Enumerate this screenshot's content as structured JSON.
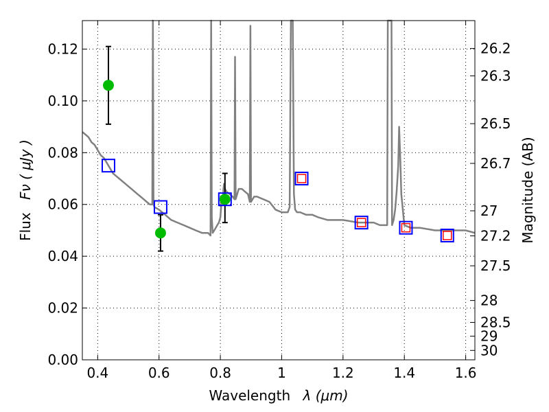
{
  "chart_data": {
    "type": "scatter",
    "xlabel_text": "Wavelength",
    "xlabel_math": "λ (μm)",
    "ylabel_text": "Flux",
    "ylabel_math": "Fν ( μJy )",
    "ylabel_right": "Magnitude (AB)",
    "xlim": [
      0.35,
      1.63
    ],
    "ylim": [
      0.0,
      0.131
    ],
    "grid": true,
    "x_ticks": [
      0.4,
      0.6,
      0.8,
      1.0,
      1.2,
      1.4,
      1.6
    ],
    "x_tick_labels": [
      "0.4",
      "0.6",
      "0.8",
      "1",
      "1.2",
      "1.4",
      "1.6"
    ],
    "y_ticks": [
      0.0,
      0.02,
      0.04,
      0.06,
      0.08,
      0.1,
      0.12
    ],
    "y_tick_labels": [
      "0.00",
      "0.02",
      "0.04",
      "0.06",
      "0.08",
      "0.10",
      "0.12"
    ],
    "mag_ticks": [
      26.2,
      26.3,
      26.5,
      26.7,
      27,
      27.2,
      27.5,
      28,
      28.5,
      29,
      30
    ],
    "mag_tick_labels": [
      "26.2",
      "26.3",
      "26.5",
      "26.7",
      "27",
      "27.2",
      "27.5",
      "28",
      "28.5",
      "29",
      "30"
    ],
    "colors": {
      "model": "#808080",
      "observed": "#00bb00",
      "errorbar": "#000000",
      "model_photometry": "#0000ff",
      "secondary_photometry": "#ff0000",
      "grid": "#000000"
    },
    "model_sed": {
      "x": [
        0.35,
        0.36,
        0.37,
        0.38,
        0.39,
        0.4,
        0.41,
        0.42,
        0.43,
        0.44,
        0.45,
        0.46,
        0.47,
        0.48,
        0.49,
        0.5,
        0.51,
        0.52,
        0.53,
        0.54,
        0.55,
        0.56,
        0.57,
        0.578,
        0.58,
        0.582,
        0.585,
        0.6,
        0.62,
        0.64,
        0.66,
        0.68,
        0.7,
        0.72,
        0.74,
        0.75,
        0.76,
        0.768,
        0.77,
        0.772,
        0.775,
        0.78,
        0.785,
        0.79,
        0.795,
        0.8,
        0.805,
        0.808,
        0.81,
        0.812,
        0.815,
        0.82,
        0.83,
        0.84,
        0.846,
        0.848,
        0.85,
        0.86,
        0.87,
        0.88,
        0.89,
        0.896,
        0.898,
        0.9,
        0.91,
        0.92,
        0.94,
        0.96,
        0.98,
        1.0,
        1.01,
        1.02,
        1.026,
        1.03,
        1.036,
        1.04,
        1.044,
        1.05,
        1.06,
        1.08,
        1.1,
        1.12,
        1.15,
        1.2,
        1.25,
        1.3,
        1.32,
        1.344,
        1.346,
        1.352,
        1.356,
        1.358,
        1.36,
        1.365,
        1.37,
        1.375,
        1.38,
        1.383,
        1.386,
        1.39,
        1.4,
        1.42,
        1.45,
        1.5,
        1.55,
        1.6,
        1.63
      ],
      "y": [
        0.088,
        0.087,
        0.086,
        0.084,
        0.083,
        0.081,
        0.079,
        0.078,
        0.076,
        0.074,
        0.072,
        0.071,
        0.07,
        0.069,
        0.068,
        0.067,
        0.066,
        0.065,
        0.064,
        0.063,
        0.062,
        0.061,
        0.06,
        0.06,
        0.14,
        0.06,
        0.059,
        0.058,
        0.056,
        0.054,
        0.053,
        0.052,
        0.051,
        0.05,
        0.049,
        0.049,
        0.049,
        0.048,
        0.14,
        0.055,
        0.049,
        0.05,
        0.051,
        0.052,
        0.053,
        0.055,
        0.063,
        0.06,
        0.066,
        0.068,
        0.066,
        0.065,
        0.064,
        0.063,
        0.062,
        0.117,
        0.062,
        0.066,
        0.066,
        0.065,
        0.064,
        0.061,
        0.129,
        0.061,
        0.063,
        0.063,
        0.062,
        0.061,
        0.058,
        0.057,
        0.057,
        0.057,
        0.059,
        0.14,
        0.14,
        0.064,
        0.058,
        0.057,
        0.057,
        0.056,
        0.056,
        0.055,
        0.054,
        0.054,
        0.053,
        0.053,
        0.052,
        0.052,
        0.14,
        0.14,
        0.14,
        0.14,
        0.052,
        0.054,
        0.058,
        0.065,
        0.075,
        0.09,
        0.08,
        0.064,
        0.052,
        0.051,
        0.051,
        0.05,
        0.05,
        0.05,
        0.049
      ]
    },
    "model_photometry": {
      "x": [
        0.435,
        0.605,
        0.815,
        1.065,
        1.26,
        1.405,
        1.54
      ],
      "y": [
        0.075,
        0.059,
        0.062,
        0.07,
        0.053,
        0.051,
        0.048
      ]
    },
    "secondary_photometry": {
      "x": [
        1.065,
        1.26,
        1.405,
        1.54
      ],
      "y": [
        0.07,
        0.053,
        0.051,
        0.048
      ]
    },
    "observed": {
      "x": [
        0.435,
        0.605,
        0.815
      ],
      "y": [
        0.106,
        0.049,
        0.062
      ],
      "yerr_low": [
        0.015,
        0.007,
        0.009
      ],
      "yerr_high": [
        0.015,
        0.007,
        0.01
      ]
    }
  }
}
